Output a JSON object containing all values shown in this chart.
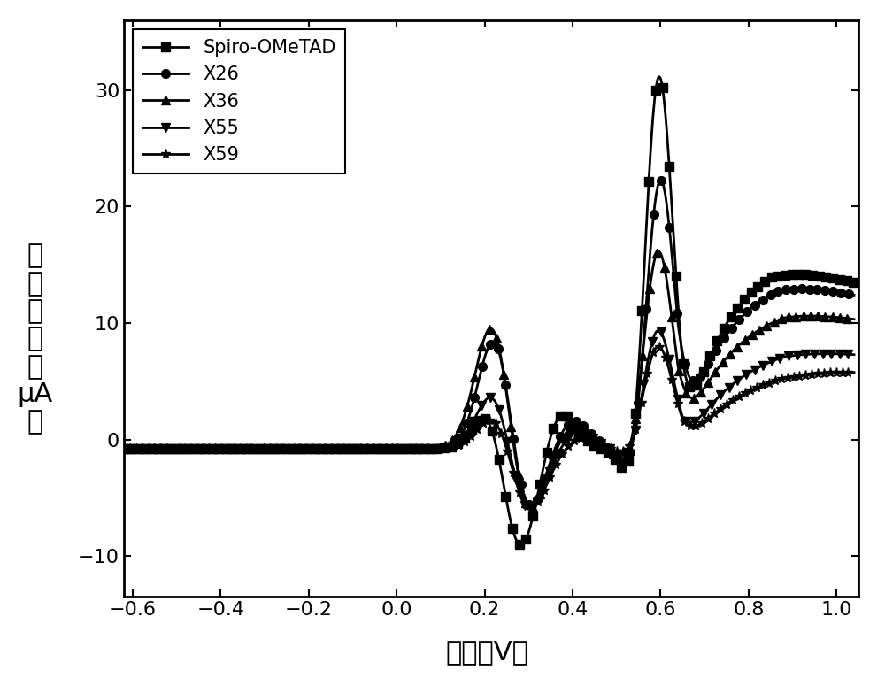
{
  "title": "",
  "xlabel": "电位（V）",
  "ylabel": "电流密度（μA）",
  "ylabel_lines": [
    "电",
    "流",
    "密",
    "度",
    "(μA)"
  ],
  "xlim": [
    -0.62,
    1.05
  ],
  "ylim": [
    -13.5,
    36
  ],
  "xticks": [
    -0.6,
    -0.4,
    -0.2,
    0.0,
    0.2,
    0.4,
    0.6,
    0.8,
    1.0
  ],
  "yticks": [
    -10,
    0,
    10,
    20,
    30
  ],
  "legend_labels": [
    "Spiro-OMeTAD",
    "X26",
    "X36",
    "X55",
    "X59"
  ],
  "marker_styles": [
    "s",
    "o",
    "^",
    "v",
    "*"
  ],
  "line_color": "#000000",
  "background_color": "#ffffff",
  "ylabel_fontsize": 22,
  "xlabel_fontsize": 22,
  "tick_fontsize": 16,
  "legend_fontsize": 15,
  "line_width": 2.0,
  "marker_size_sq": 7,
  "marker_size_circ": 7,
  "marker_size_tri": 7,
  "marker_size_star": 8
}
